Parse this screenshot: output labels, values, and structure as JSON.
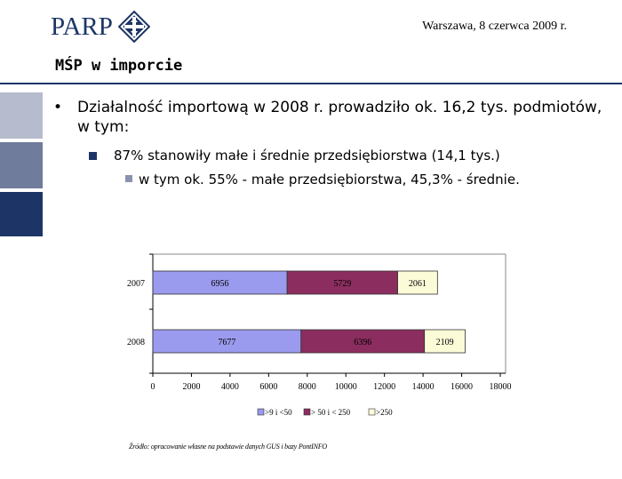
{
  "header": {
    "logo_text": "PARP",
    "date": "Warszawa, 8 czerwca 2009 r."
  },
  "slide": {
    "title": "MŚP w imporcie",
    "bullets": [
      {
        "marker": "•",
        "text": "Działalność importową  w 2008 r. prowadziło ok. 16,2 tys. podmiotów, w tym:"
      },
      {
        "text": "87% stanowiły małe i średnie przedsiębiorstwa (14,1 tys.)"
      },
      {
        "text": "w tym ok. 55% - małe przedsiębiorstwa, 45,3% - średnie."
      }
    ],
    "source": "Źródło: opracowanie własne na podstawie danych GUS i bazy PontINFO"
  },
  "colors": {
    "brand_navy": "#1d3566",
    "series_small": "#9a9aee",
    "series_medium": "#8b2d5f",
    "series_large": "#fcfbd8"
  },
  "chart_data": {
    "type": "bar",
    "orientation": "horizontal",
    "stacked": true,
    "categories": [
      "2007",
      "2008"
    ],
    "series": [
      {
        "name": ">9 i <50",
        "values": [
          6956,
          7677
        ],
        "color": "#9a9aee"
      },
      {
        "name": "> 50 i < 250",
        "values": [
          5729,
          6396
        ],
        "color": "#8b2d5f"
      },
      {
        "name": ">250",
        "values": [
          2061,
          2109
        ],
        "color": "#fcfbd8"
      }
    ],
    "x_ticks": [
      "0",
      "2000",
      "4000",
      "6000",
      "8000",
      "10000",
      "12000",
      "14000",
      "16000",
      "18000"
    ],
    "xlim": [
      0,
      18000
    ],
    "grid": false,
    "legend_position": "bottom"
  }
}
